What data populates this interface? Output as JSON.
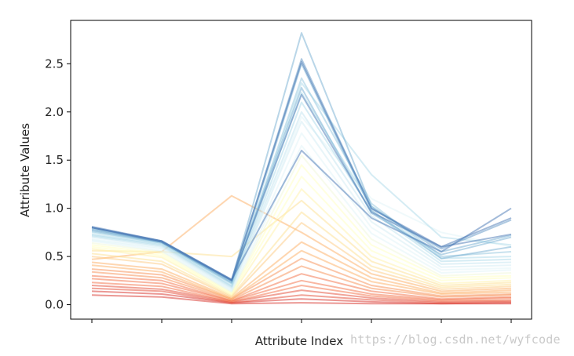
{
  "chart_data": {
    "type": "line",
    "title": "",
    "xlabel": "Attribute Index",
    "ylabel": "Attribute Values",
    "x": [
      0,
      1,
      2,
      3,
      4,
      5,
      6
    ],
    "xtick_labels": [
      "",
      "",
      "",
      "",
      "",
      "",
      ""
    ],
    "ylim": [
      -0.15,
      2.95
    ],
    "yticks": [
      0.0,
      0.5,
      1.0,
      1.5,
      2.0,
      2.5
    ],
    "ytick_labels": [
      "0.0",
      "0.5",
      "1.0",
      "1.5",
      "2.0",
      "2.5"
    ],
    "grid": false,
    "legend": "none",
    "colormap": [
      "#d73027",
      "#f46d43",
      "#fdae61",
      "#fee090",
      "#ffffbf",
      "#e0f3f8",
      "#abd9e9",
      "#74add1",
      "#4575b4"
    ],
    "line_opacity": 0.5,
    "series": [
      {
        "color": "#d73027",
        "values": [
          0.1,
          0.08,
          0.01,
          0.02,
          0.01,
          0.01,
          0.01
        ]
      },
      {
        "color": "#d73027",
        "values": [
          0.14,
          0.11,
          0.02,
          0.06,
          0.03,
          0.01,
          0.02
        ]
      },
      {
        "color": "#e34a33",
        "values": [
          0.17,
          0.14,
          0.02,
          0.1,
          0.05,
          0.02,
          0.03
        ]
      },
      {
        "color": "#e34a33",
        "values": [
          0.2,
          0.16,
          0.03,
          0.15,
          0.07,
          0.03,
          0.04
        ]
      },
      {
        "color": "#f46d43",
        "values": [
          0.23,
          0.19,
          0.03,
          0.2,
          0.09,
          0.04,
          0.05
        ]
      },
      {
        "color": "#f46d43",
        "values": [
          0.27,
          0.22,
          0.04,
          0.25,
          0.11,
          0.05,
          0.07
        ]
      },
      {
        "color": "#f46d43",
        "values": [
          0.3,
          0.25,
          0.04,
          0.32,
          0.14,
          0.06,
          0.08
        ]
      },
      {
        "color": "#f88d52",
        "values": [
          0.34,
          0.28,
          0.05,
          0.4,
          0.17,
          0.08,
          0.1
        ]
      },
      {
        "color": "#f88d52",
        "values": [
          0.37,
          0.31,
          0.06,
          0.48,
          0.2,
          0.09,
          0.11
        ]
      },
      {
        "color": "#fdae61",
        "values": [
          0.41,
          0.34,
          0.06,
          0.56,
          0.24,
          0.11,
          0.13
        ]
      },
      {
        "color": "#fdae61",
        "values": [
          0.44,
          0.37,
          0.07,
          0.65,
          0.28,
          0.12,
          0.15
        ]
      },
      {
        "color": "#fdae61",
        "values": [
          0.47,
          0.55,
          1.13,
          0.75,
          0.32,
          0.14,
          0.17
        ]
      },
      {
        "color": "#fec980",
        "values": [
          0.5,
          0.42,
          0.08,
          0.85,
          0.36,
          0.16,
          0.19
        ]
      },
      {
        "color": "#fee090",
        "values": [
          0.53,
          0.45,
          0.09,
          0.96,
          0.4,
          0.18,
          0.21
        ]
      },
      {
        "color": "#fee090",
        "values": [
          0.56,
          0.55,
          0.5,
          1.08,
          0.45,
          0.2,
          0.23
        ]
      },
      {
        "color": "#fff2a8",
        "values": [
          0.58,
          0.49,
          0.1,
          1.2,
          0.5,
          0.22,
          0.25
        ]
      },
      {
        "color": "#ffffbf",
        "values": [
          0.6,
          0.51,
          0.11,
          1.33,
          0.56,
          0.25,
          0.28
        ]
      },
      {
        "color": "#ffffbf",
        "values": [
          0.62,
          0.53,
          0.12,
          1.45,
          0.62,
          0.28,
          0.3
        ]
      },
      {
        "color": "#f0f8d8",
        "values": [
          0.64,
          0.55,
          0.13,
          1.55,
          0.68,
          0.3,
          0.33
        ]
      },
      {
        "color": "#e0f3f8",
        "values": [
          0.66,
          0.56,
          0.14,
          1.65,
          0.74,
          0.33,
          0.36
        ]
      },
      {
        "color": "#e0f3f8",
        "values": [
          0.67,
          0.58,
          0.15,
          1.78,
          0.8,
          0.36,
          0.38
        ]
      },
      {
        "color": "#e0f3f8",
        "values": [
          0.68,
          0.59,
          0.16,
          1.95,
          1.1,
          0.75,
          0.6
        ]
      },
      {
        "color": "#d1ecf3",
        "values": [
          0.7,
          0.6,
          0.17,
          1.9,
          0.86,
          0.39,
          0.41
        ]
      },
      {
        "color": "#c2e4ef",
        "values": [
          0.71,
          0.61,
          0.18,
          2.0,
          0.92,
          0.42,
          0.44
        ]
      },
      {
        "color": "#abd9e9",
        "values": [
          0.72,
          0.62,
          0.19,
          2.1,
          0.97,
          0.45,
          0.47
        ]
      },
      {
        "color": "#abd9e9",
        "values": [
          0.73,
          0.63,
          0.2,
          2.2,
          1.02,
          0.48,
          0.5
        ]
      },
      {
        "color": "#abd9e9",
        "values": [
          0.75,
          0.64,
          0.22,
          2.3,
          1.35,
          0.7,
          0.62
        ]
      },
      {
        "color": "#92c5de",
        "values": [
          0.76,
          0.64,
          0.22,
          2.35,
          1.05,
          0.5,
          0.55
        ]
      },
      {
        "color": "#74add1",
        "values": [
          0.77,
          0.65,
          0.23,
          2.5,
          0.98,
          0.48,
          0.6
        ]
      },
      {
        "color": "#74add1",
        "values": [
          0.78,
          0.65,
          0.24,
          2.25,
          0.95,
          0.52,
          0.7
        ]
      },
      {
        "color": "#74add1",
        "values": [
          0.79,
          0.65,
          0.25,
          2.82,
          1.02,
          0.55,
          0.72
        ]
      },
      {
        "color": "#5e94c4",
        "values": [
          0.8,
          0.66,
          0.25,
          2.55,
          1.0,
          0.58,
          0.88
        ]
      },
      {
        "color": "#4575b4",
        "values": [
          0.8,
          0.66,
          0.26,
          2.52,
          1.0,
          0.6,
          0.9
        ]
      },
      {
        "color": "#4575b4",
        "values": [
          0.81,
          0.66,
          0.26,
          1.6,
          0.9,
          0.55,
          1.0
        ]
      },
      {
        "color": "#4575b4",
        "values": [
          0.8,
          0.65,
          0.25,
          2.18,
          0.96,
          0.6,
          0.73
        ]
      }
    ]
  }
}
